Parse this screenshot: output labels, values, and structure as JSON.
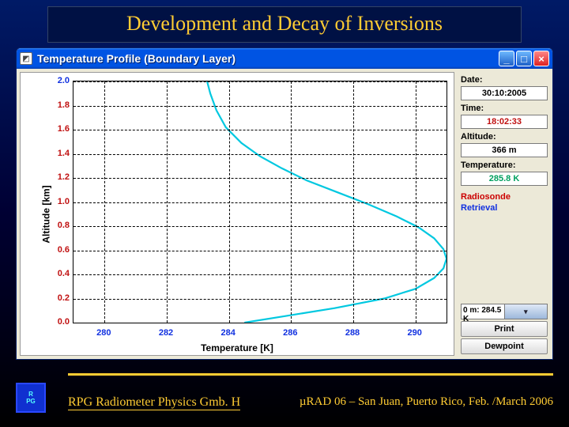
{
  "slide": {
    "title": "Development and Decay of Inversions"
  },
  "window": {
    "title": "Temperature Profile (Boundary Layer)",
    "icon_glyph": "◩"
  },
  "sidepanel": {
    "date_label": "Date:",
    "date_value": "30:10:2005",
    "time_label": "Time:",
    "time_value": "18:02:33",
    "altitude_label": "Altitude:",
    "altitude_value": "366 m",
    "temperature_label": "Temperature:",
    "temperature_value": "285.8 K",
    "legend_radiosonde": "Radiosonde",
    "legend_retrieval": "Retrieval",
    "combo_value": "0 m: 284.5 K",
    "print_button": "Print",
    "dewpoint_button": "Dewpoint"
  },
  "chart": {
    "type": "line",
    "x_label": "Temperature [K]",
    "y_label": "Altitude [km]",
    "xlim": [
      279,
      291
    ],
    "ylim": [
      0.0,
      2.0
    ],
    "x_ticks": [
      280,
      282,
      284,
      286,
      288,
      290
    ],
    "y_ticks": [
      0.0,
      0.2,
      0.4,
      0.6,
      0.8,
      1.0,
      1.2,
      1.4,
      1.6,
      1.8,
      2.0
    ],
    "y_tick_colors": {
      "default": "#c01010",
      "special": {
        "2.0": "#1030e0"
      }
    },
    "x_tick_color": "#1030e0",
    "background_color": "#ffffff",
    "panel_bg": "#ece9d8",
    "grid_color": "#000000",
    "grid_dash": true,
    "series_color": "#00c8e0",
    "series_width": 2.2,
    "series_xy": [
      [
        284.5,
        0.0
      ],
      [
        285.7,
        0.05
      ],
      [
        287.4,
        0.12
      ],
      [
        289.0,
        0.2
      ],
      [
        290.0,
        0.28
      ],
      [
        290.6,
        0.37
      ],
      [
        290.9,
        0.45
      ],
      [
        291.0,
        0.53
      ],
      [
        290.9,
        0.61
      ],
      [
        290.6,
        0.7
      ],
      [
        290.1,
        0.79
      ],
      [
        289.4,
        0.88
      ],
      [
        288.5,
        0.98
      ],
      [
        287.5,
        1.08
      ],
      [
        286.5,
        1.18
      ],
      [
        285.7,
        1.28
      ],
      [
        285.0,
        1.38
      ],
      [
        284.4,
        1.49
      ],
      [
        283.9,
        1.62
      ],
      [
        283.6,
        1.76
      ],
      [
        283.4,
        1.9
      ],
      [
        283.3,
        2.0
      ]
    ]
  },
  "footer": {
    "company": "RPG Radiometer Physics Gmb. H",
    "venue": "µRAD 06  – San Juan, Puerto Rico,  Feb. /March  2006",
    "logo_top": "R",
    "logo_bottom": "PG"
  },
  "colors": {
    "slide_bg_top": "#001a66",
    "slide_bg_bottom": "#000000",
    "accent_gold": "#ffcc33",
    "titlebar_blue": "#0054e3",
    "legend_red": "#cc0000",
    "legend_blue": "#1030e0",
    "temp_value_green": "#00a060"
  }
}
